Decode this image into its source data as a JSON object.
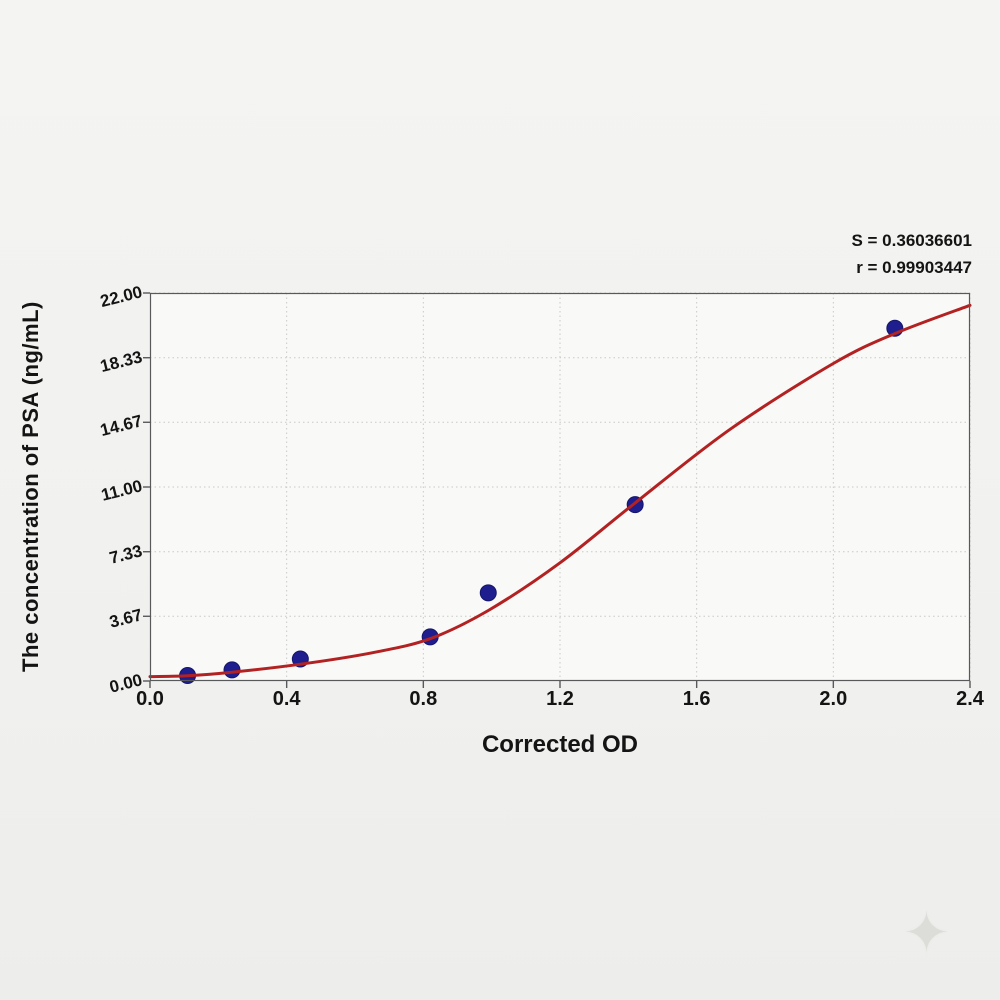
{
  "chart_data": {
    "type": "scatter",
    "title": "",
    "xlabel": "Corrected OD",
    "ylabel": "The concentration of PSA (ng/mL)",
    "xlim": [
      0,
      2.4
    ],
    "ylim": [
      0,
      22
    ],
    "grid": true,
    "legend": "none",
    "x_ticks": [
      "0.0",
      "0.4",
      "0.8",
      "1.2",
      "1.6",
      "2.0",
      "2.4"
    ],
    "x_tick_values": [
      0,
      0.4,
      0.8,
      1.2,
      1.6,
      2.0,
      2.4
    ],
    "y_ticks": [
      "0.00",
      "3.67",
      "7.33",
      "11.00",
      "14.67",
      "18.33",
      "22.00"
    ],
    "y_tick_values": [
      0,
      3.67,
      7.33,
      11.0,
      14.67,
      18.33,
      22.0
    ],
    "points": [
      {
        "x": 0.11,
        "y": 0.31
      },
      {
        "x": 0.24,
        "y": 0.63
      },
      {
        "x": 0.44,
        "y": 1.25
      },
      {
        "x": 0.82,
        "y": 2.5
      },
      {
        "x": 0.99,
        "y": 5.0
      },
      {
        "x": 1.42,
        "y": 10.0
      },
      {
        "x": 2.18,
        "y": 20.0
      }
    ],
    "curve_points": [
      {
        "x": 0.0,
        "y": 0.25
      },
      {
        "x": 0.11,
        "y": 0.3
      },
      {
        "x": 0.24,
        "y": 0.5
      },
      {
        "x": 0.44,
        "y": 0.95
      },
      {
        "x": 0.65,
        "y": 1.6
      },
      {
        "x": 0.82,
        "y": 2.4
      },
      {
        "x": 0.99,
        "y": 4.0
      },
      {
        "x": 1.2,
        "y": 6.7
      },
      {
        "x": 1.42,
        "y": 10.1
      },
      {
        "x": 1.7,
        "y": 14.3
      },
      {
        "x": 2.0,
        "y": 18.0
      },
      {
        "x": 2.18,
        "y": 19.7
      },
      {
        "x": 2.4,
        "y": 21.3
      }
    ],
    "stats": {
      "s": "S = 0.36036601",
      "r": "r = 0.99903447"
    },
    "colors": {
      "curve": "#b22222",
      "points": "#1e1e8e",
      "points_edge": "#15156b",
      "grid": "#c9c9c6",
      "axis": "#58595b",
      "text": "#141414"
    },
    "watermark_icon": "✦"
  }
}
